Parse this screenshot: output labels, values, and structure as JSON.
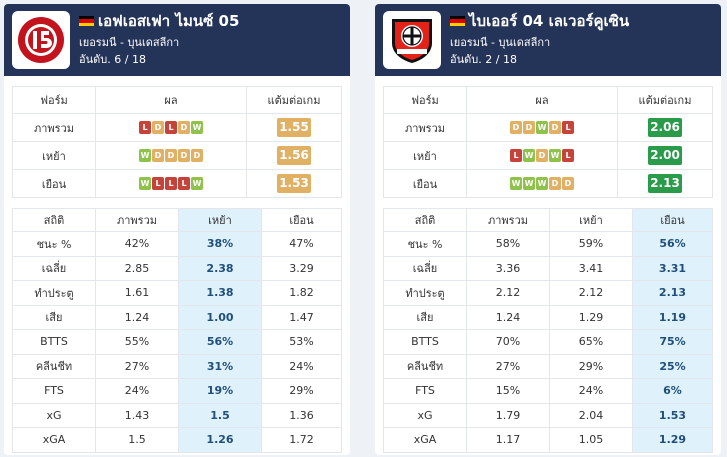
{
  "colors": {
    "header": "#243358",
    "win": "#8fc24b",
    "draw": "#e0b064",
    "loss": "#c4443b",
    "ppg_gold": "#e0b064",
    "ppg_green": "#2a9b4a",
    "highlight": "#dff1fb"
  },
  "teams": [
    {
      "name": "เอฟเอสเฟา ไมนซ์ 05",
      "league": "เยอรมนี - บุนเดสลีกา",
      "rank": "อันดับ. 6 / 18",
      "logo_icon": "mainz-05-crest-icon",
      "form_headers": [
        "ฟอร์ม",
        "ผล",
        "แต้มต่อเกม"
      ],
      "form_rows": [
        {
          "label": "ภาพรวม",
          "results": [
            "L",
            "D",
            "L",
            "D",
            "W"
          ],
          "ppg": "1.55",
          "ppg_color": "#e0b064"
        },
        {
          "label": "เหย้า",
          "results": [
            "W",
            "D",
            "D",
            "D",
            "D"
          ],
          "ppg": "1.56",
          "ppg_color": "#e0b064"
        },
        {
          "label": "เยือน",
          "results": [
            "W",
            "L",
            "L",
            "L",
            "W"
          ],
          "ppg": "1.53",
          "ppg_color": "#e0b064"
        }
      ],
      "stats_headers": [
        "สถิติ",
        "ภาพรวม",
        "เหย้า",
        "เยือน"
      ],
      "stats_rows": [
        [
          "ชนะ %",
          "42%",
          "38%",
          "47%"
        ],
        [
          "เฉลี่ย",
          "2.85",
          "2.38",
          "3.29"
        ],
        [
          "ทำประตู",
          "1.61",
          "1.38",
          "1.82"
        ],
        [
          "เสีย",
          "1.24",
          "1.00",
          "1.47"
        ],
        [
          "BTTS",
          "55%",
          "56%",
          "53%"
        ],
        [
          "คลีนชีท",
          "27%",
          "31%",
          "24%"
        ],
        [
          "FTS",
          "24%",
          "19%",
          "29%"
        ],
        [
          "xG",
          "1.43",
          "1.5",
          "1.36"
        ],
        [
          "xGA",
          "1.5",
          "1.26",
          "1.72"
        ]
      ],
      "highlight_col": 2
    },
    {
      "name": "ไบเออร์ 04 เลเวอร์คูเซิน",
      "league": "เยอรมนี - บุนเดสลีกา",
      "rank": "อันดับ. 2 / 18",
      "logo_icon": "bayer-04-leverkusen-crest-icon",
      "form_headers": [
        "ฟอร์ม",
        "ผล",
        "แต้มต่อเกม"
      ],
      "form_rows": [
        {
          "label": "ภาพรวม",
          "results": [
            "D",
            "D",
            "W",
            "D",
            "L"
          ],
          "ppg": "2.06",
          "ppg_color": "#2a9b4a"
        },
        {
          "label": "เหย้า",
          "results": [
            "L",
            "W",
            "D",
            "W",
            "L"
          ],
          "ppg": "2.00",
          "ppg_color": "#2a9b4a"
        },
        {
          "label": "เยือน",
          "results": [
            "W",
            "W",
            "W",
            "D",
            "D"
          ],
          "ppg": "2.13",
          "ppg_color": "#2a9b4a"
        }
      ],
      "stats_headers": [
        "สถิติ",
        "ภาพรวม",
        "เหย้า",
        "เยือน"
      ],
      "stats_rows": [
        [
          "ชนะ %",
          "58%",
          "59%",
          "56%"
        ],
        [
          "เฉลี่ย",
          "3.36",
          "3.41",
          "3.31"
        ],
        [
          "ทำประตู",
          "2.12",
          "2.12",
          "2.13"
        ],
        [
          "เสีย",
          "1.24",
          "1.29",
          "1.19"
        ],
        [
          "BTTS",
          "70%",
          "65%",
          "75%"
        ],
        [
          "คลีนชีท",
          "27%",
          "29%",
          "25%"
        ],
        [
          "FTS",
          "15%",
          "24%",
          "6%"
        ],
        [
          "xG",
          "1.79",
          "2.04",
          "1.53"
        ],
        [
          "xGA",
          "1.17",
          "1.05",
          "1.29"
        ]
      ],
      "highlight_col": 3
    }
  ]
}
